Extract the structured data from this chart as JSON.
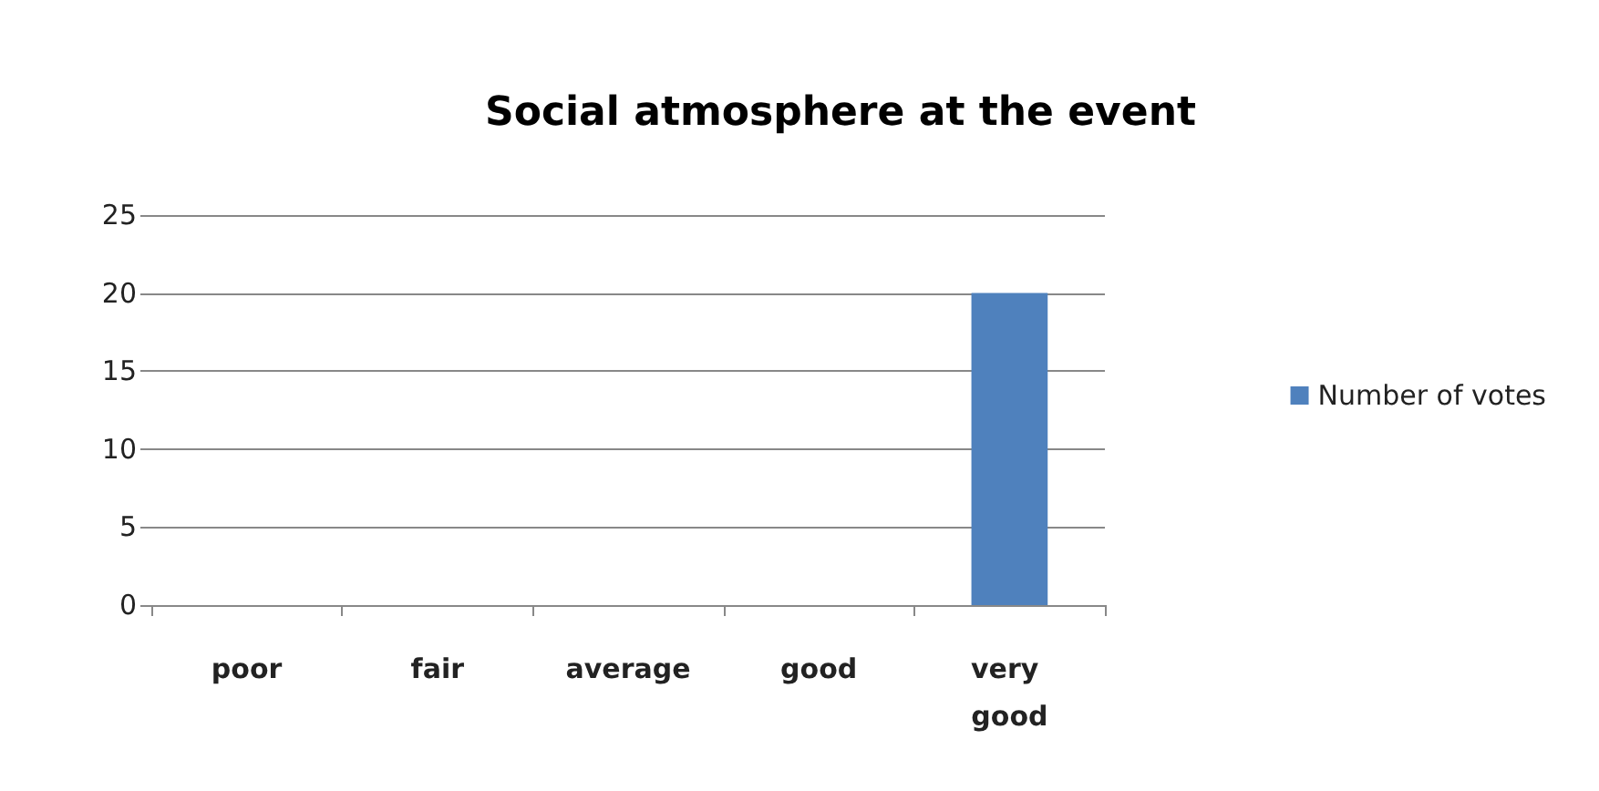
{
  "chart_data": {
    "type": "bar",
    "title": "Social atmosphere at the event",
    "categories": [
      "poor",
      "fair",
      "average",
      "good",
      "very good"
    ],
    "series": [
      {
        "name": "Number of votes",
        "color": "#4f81bd",
        "values": [
          0,
          0,
          0,
          0,
          20
        ]
      }
    ],
    "ylim": [
      0,
      25
    ],
    "yticks": [
      0,
      5,
      10,
      15,
      20,
      25
    ],
    "grid": "y",
    "legend": "right"
  }
}
